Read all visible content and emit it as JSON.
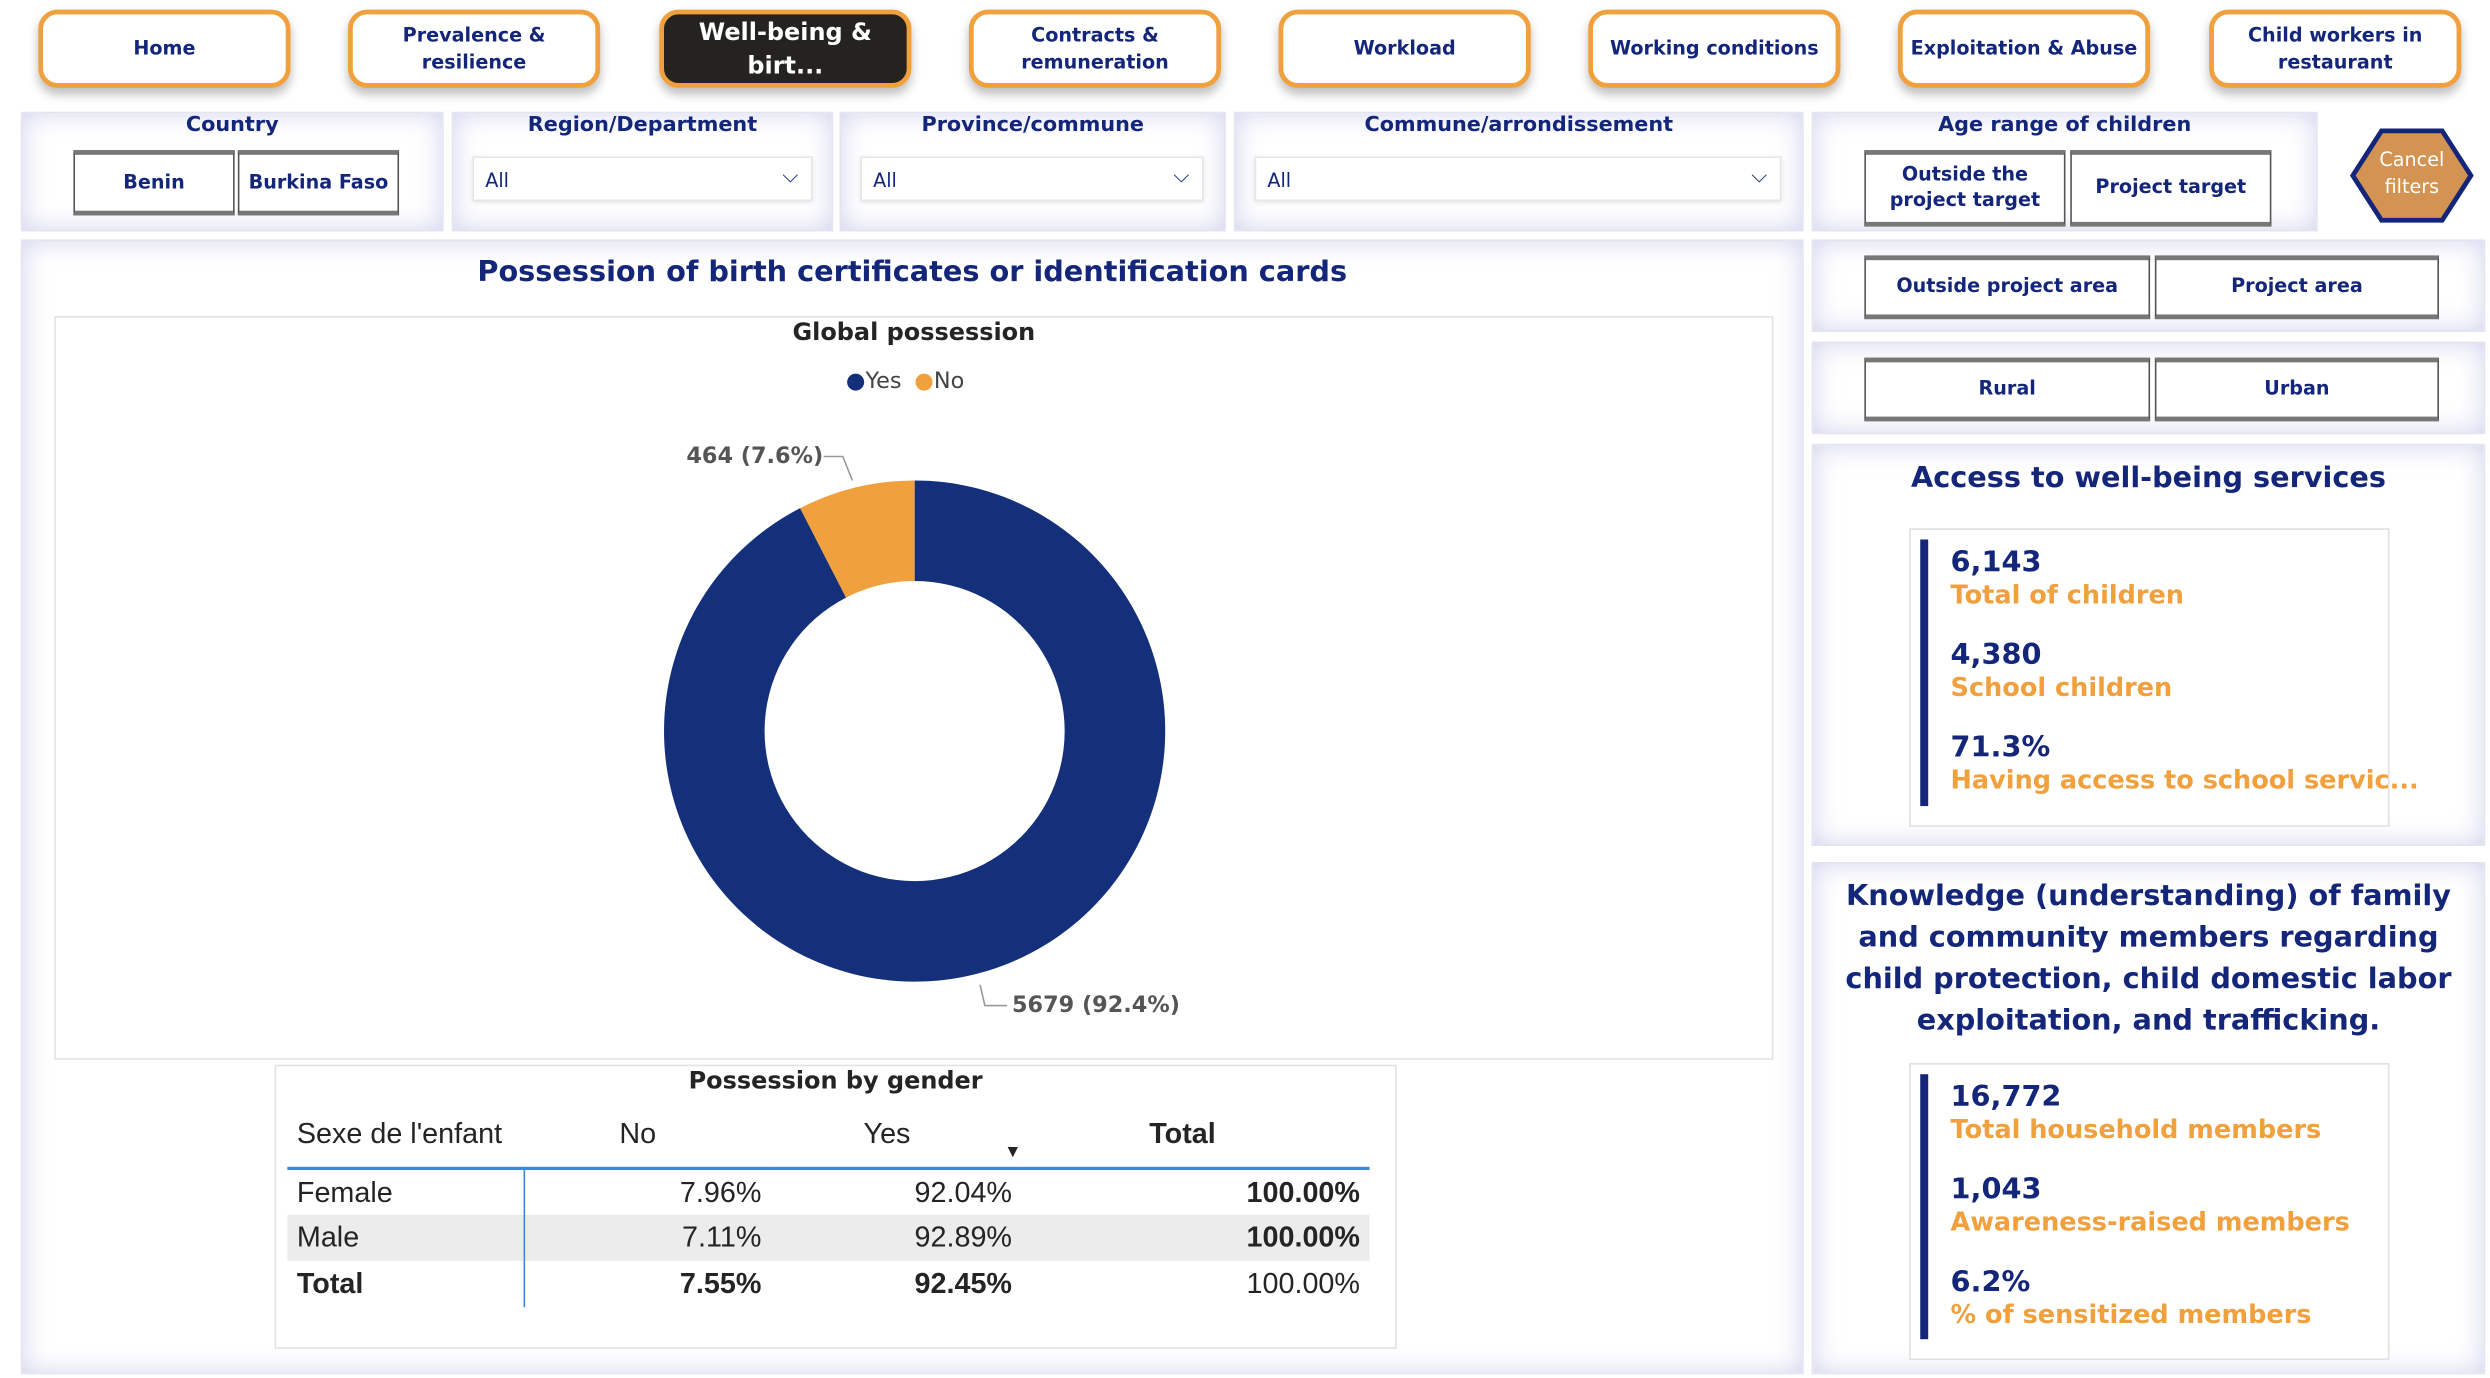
{
  "nav": [
    "Home",
    "Prevalence & resilience",
    "Well-being & birt...",
    "Contracts & remuneration",
    "Workload",
    "Working conditions",
    "Exploitation & Abuse",
    "Child workers in restaurant"
  ],
  "filters": {
    "country": {
      "title": "Country",
      "options": [
        "Benin",
        "Burkina Faso"
      ]
    },
    "region": {
      "title": "Region/Department",
      "value": "All"
    },
    "province": {
      "title": "Province/commune",
      "value": "All"
    },
    "commune": {
      "title": "Commune/arrondissement",
      "value": "All"
    },
    "age": {
      "title": "Age range of children",
      "options": [
        "Outside the project target",
        "Project target"
      ]
    },
    "cancel": "Cancel filters",
    "area": [
      "Outside project area",
      "Project area"
    ],
    "zone": [
      "Rural",
      "Urban"
    ]
  },
  "main": {
    "title": "Possession of birth certificates or identification cards"
  },
  "chart_data": {
    "type": "pie",
    "title": "Global possession",
    "legend": [
      "Yes",
      "No"
    ],
    "legend_position": "top-center",
    "donut": true,
    "slices": [
      {
        "label": "Yes",
        "value": 5679,
        "text": "5679 (92.4%)",
        "color": "#14307a"
      },
      {
        "label": "No",
        "value": 464,
        "text": "464 (7.6%)",
        "color": "#f0a03c"
      }
    ]
  },
  "table": {
    "title": "Possession by gender",
    "headers": [
      "Sexe de l'enfant",
      "No",
      "Yes",
      "Total"
    ],
    "rows": [
      [
        "Female",
        "7.96%",
        "92.04%",
        "100.00%"
      ],
      [
        "Male",
        "7.11%",
        "92.89%",
        "100.00%"
      ],
      [
        "Total",
        "7.55%",
        "92.45%",
        "100.00%"
      ]
    ]
  },
  "access": {
    "title": "Access to well-being services",
    "items": [
      {
        "value": "6,143",
        "label": "Total of children"
      },
      {
        "value": "4,380",
        "label": "School children"
      },
      {
        "value": "71.3%",
        "label": "Having access to school servic..."
      }
    ]
  },
  "knowledge": {
    "title": "Knowledge (understanding) of family and community members regarding child protection, child domestic labor exploitation, and trafficking.",
    "items": [
      {
        "value": "16,772",
        "label": "Total household members"
      },
      {
        "value": "1,043",
        "label": "Awareness-raised members"
      },
      {
        "value": "6.2%",
        "label": "% of sensitized members"
      }
    ]
  }
}
